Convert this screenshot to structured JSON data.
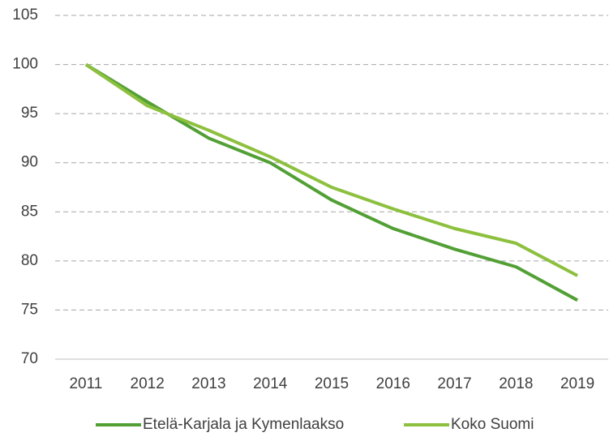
{
  "chart_data": {
    "type": "line",
    "categories": [
      "2011",
      "2012",
      "2013",
      "2014",
      "2015",
      "2016",
      "2017",
      "2018",
      "2019"
    ],
    "series": [
      {
        "name": "Etelä-Karjala ja Kymenlaakso",
        "color": "#52a035",
        "values": [
          100,
          96.2,
          92.5,
          90,
          86.2,
          83.3,
          81.2,
          79.4,
          76
        ]
      },
      {
        "name": "Koko Suomi",
        "color": "#8dc03f",
        "values": [
          100,
          95.8,
          93.3,
          90.6,
          87.5,
          85.3,
          83.3,
          81.8,
          78.5
        ]
      }
    ],
    "ylim": [
      70,
      105
    ],
    "yticks": [
      70,
      75,
      80,
      85,
      90,
      95,
      100,
      105
    ],
    "grid": true,
    "legend": "bottom"
  }
}
